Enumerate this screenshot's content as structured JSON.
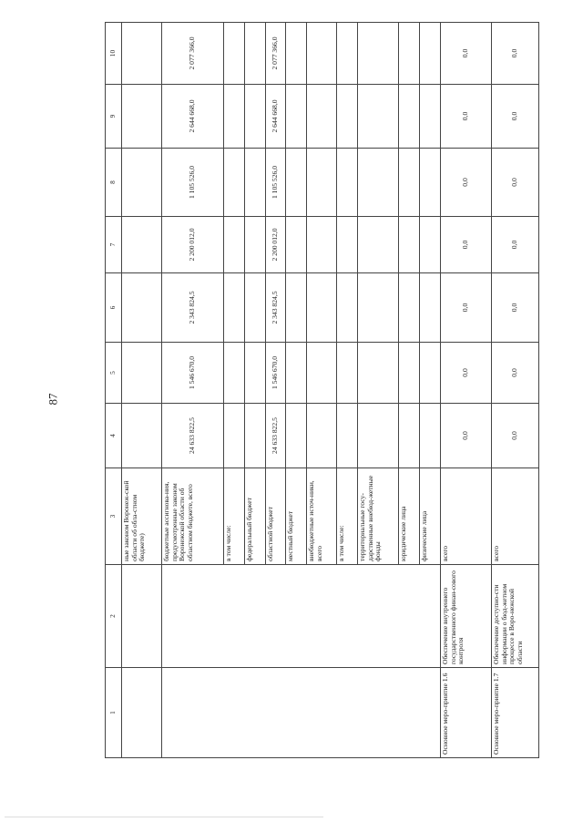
{
  "page_number": "87",
  "table": {
    "header": [
      "1",
      "2",
      "3",
      "4",
      "5",
      "6",
      "7",
      "8",
      "9",
      "10"
    ],
    "rows": [
      {
        "c1": "",
        "c2": "",
        "c3": "ные законом Воронеж-ской области об обла-стном бюджете)",
        "v": [
          "",
          "",
          "",
          "",
          "",
          "",
          ""
        ]
      },
      {
        "c1": "",
        "c2": "",
        "c3": "бюджетные ассигнова-ния, предусмотренные законом Воронежской области об областном бюджете, всего",
        "v": [
          "24 633 822,5",
          "1 546 670,0",
          "2 343 824,5",
          "2 200 012,0",
          "1 105 526,0",
          "2 644 668,0",
          "2 077 366,0"
        ]
      },
      {
        "c3": "в том числе:",
        "v": [
          "",
          "",
          "",
          "",
          "",
          "",
          ""
        ]
      },
      {
        "c3": "федеральный бюджет",
        "v": [
          "",
          "",
          "",
          "",
          "",
          "",
          ""
        ]
      },
      {
        "c3": "областной бюджет",
        "v": [
          "24 633 822,5",
          "1 546 670,0",
          "2 343 824,5",
          "2 200 012,0",
          "1 105 526,0",
          "2 644 668,0",
          "2 077 366,0"
        ]
      },
      {
        "c3": "местный бюджет",
        "v": [
          "",
          "",
          "",
          "",
          "",
          "",
          ""
        ]
      },
      {
        "c3": "внебюджетные источ-ники, всего",
        "v": [
          "",
          "",
          "",
          "",
          "",
          "",
          ""
        ]
      },
      {
        "c3": "в том числе:",
        "v": [
          "",
          "",
          "",
          "",
          "",
          "",
          ""
        ]
      },
      {
        "c3": "территориальные госу-дарственные внебюд-жетные фонды",
        "v": [
          "",
          "",
          "",
          "",
          "",
          "",
          ""
        ]
      },
      {
        "c3": "юридические лица",
        "v": [
          "",
          "",
          "",
          "",
          "",
          "",
          ""
        ]
      },
      {
        "c3": "физические лица",
        "v": [
          "",
          "",
          "",
          "",
          "",
          "",
          ""
        ]
      },
      {
        "c1": "Основное меро-приятие 1.6",
        "c2": "Обеспечение внутреннего государственного финан-сового контроля",
        "c3": "всего",
        "v": [
          "0,0",
          "0,0",
          "0,0",
          "0,0",
          "0,0",
          "0,0",
          "0,0"
        ]
      },
      {
        "c1": "Основное меро-приятие 1.7",
        "c2": "Обеспечение доступно-сти информации о бюд-жетном процессе в Воро-нежской области",
        "c3": "всего",
        "v": [
          "0,0",
          "0,0",
          "0,0",
          "0,0",
          "0,0",
          "0,0",
          "0,0"
        ]
      }
    ]
  }
}
